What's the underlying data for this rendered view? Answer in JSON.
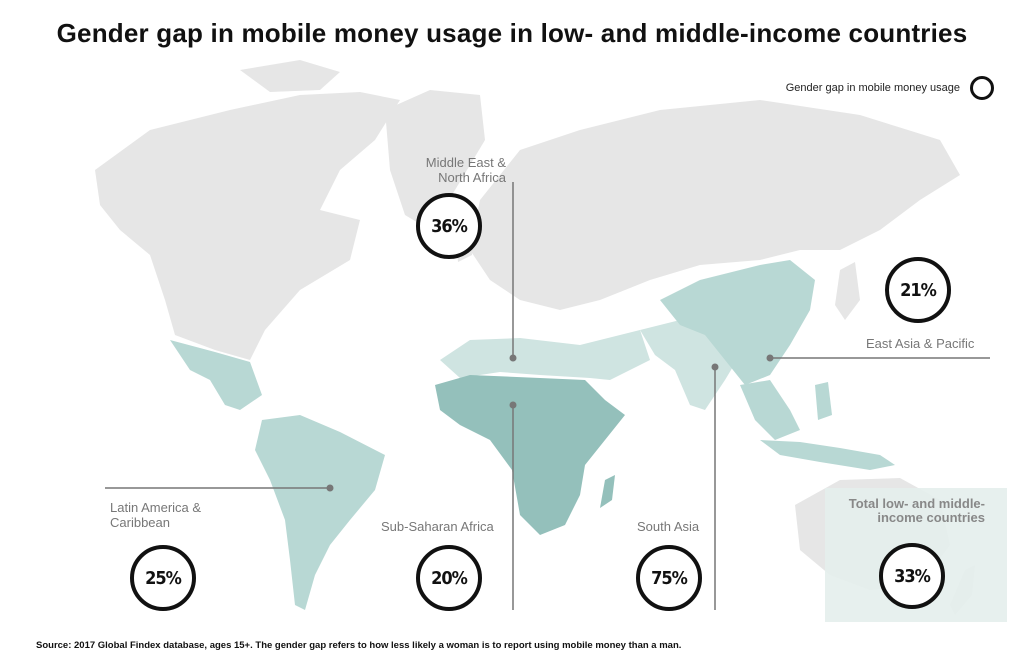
{
  "title": "Gender gap in mobile money usage in low- and middle-income countries",
  "legend": {
    "label": "Gender gap in mobile money usage",
    "icon": "ring-icon"
  },
  "regions": {
    "mena": {
      "label_line1": "Middle East &",
      "label_line2": "North Africa",
      "value": "36%"
    },
    "east_asia": {
      "label": "East Asia & Pacific",
      "value": "21%"
    },
    "latam": {
      "label_line1": "Latin America &",
      "label_line2": "Caribbean",
      "value": "25%"
    },
    "ssa": {
      "label": "Sub-Saharan Africa",
      "value": "20%"
    },
    "south_asia": {
      "label": "South Asia",
      "value": "75%"
    },
    "total": {
      "label_line1": "Total low- and middle-",
      "label_line2": "income countries",
      "value": "33%"
    }
  },
  "colors": {
    "land": "#e6e6e6",
    "highlight": "#b8d8d4",
    "highlight_dark": "#94c0bb",
    "highlight_light": "#cfe4e1",
    "leader": "#777777"
  },
  "source": "Source: 2017 Global Findex database, ages 15+. The gender gap refers to how less likely a woman is to report using mobile money than a man."
}
